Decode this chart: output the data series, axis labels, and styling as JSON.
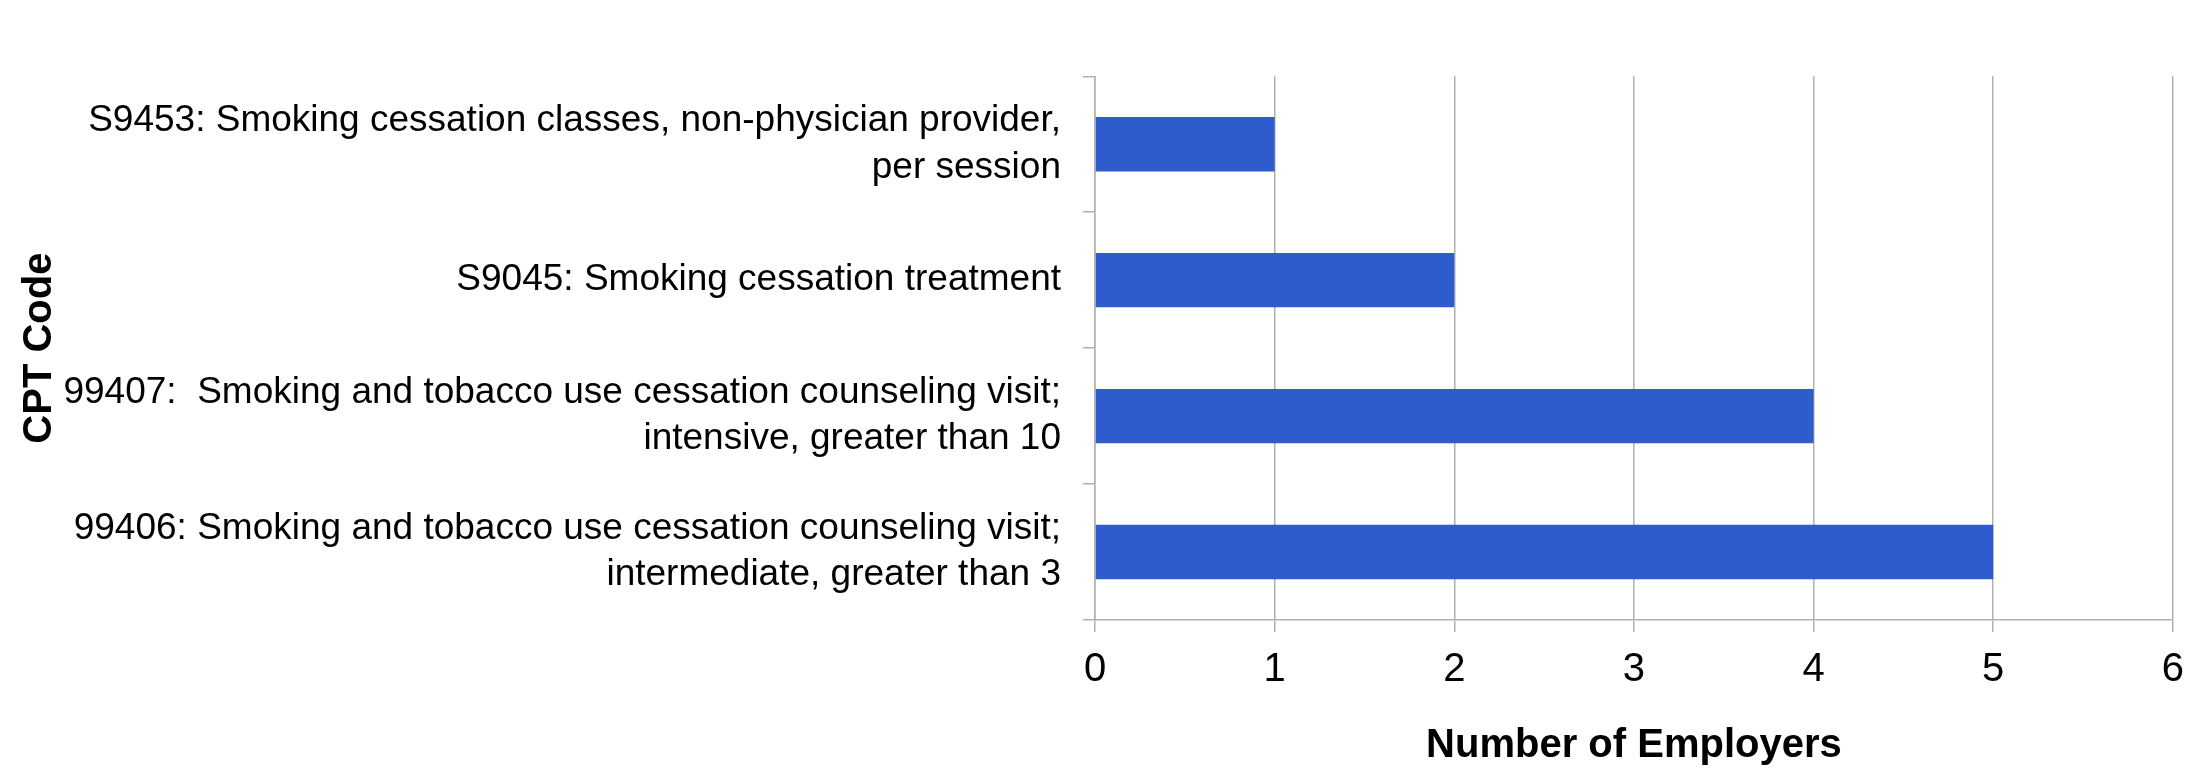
{
  "chart_data": {
    "type": "bar",
    "orientation": "horizontal",
    "xlabel": "Number of Employers",
    "ylabel": "CPT Code",
    "categories": [
      "S9453: Smoking cessation classes, non-physician provider, per session",
      "S9045: Smoking cessation treatment",
      "99407:  Smoking and tobacco use cessation counseling visit; intensive, greater than 10",
      "99406: Smoking and tobacco use cessation counseling visit; intermediate, greater than 3"
    ],
    "values": [
      1,
      2,
      4,
      5
    ],
    "color": "#2f5ccc",
    "xlim": [
      0,
      6
    ],
    "xticks": [
      0,
      1,
      2,
      3,
      4,
      5,
      6
    ],
    "grid": "x",
    "legend": false
  }
}
